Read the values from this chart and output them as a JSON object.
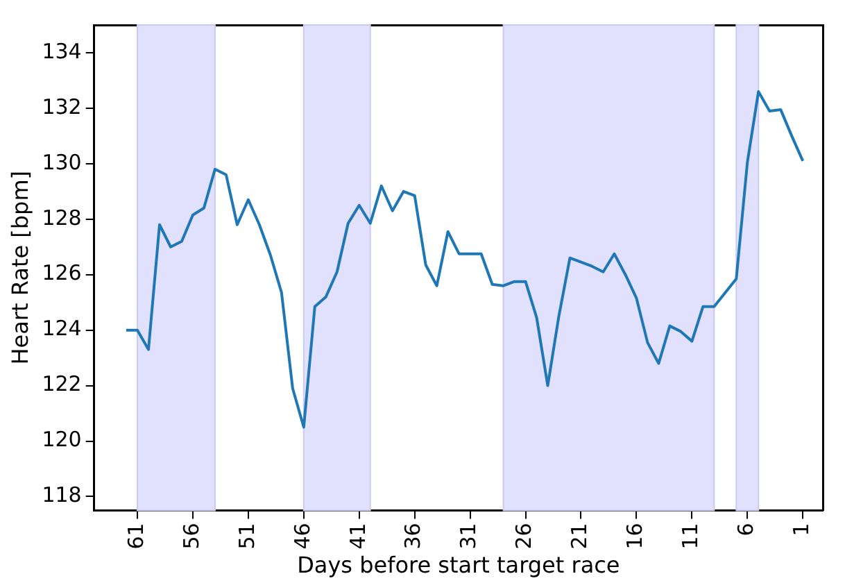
{
  "chart_data": {
    "type": "line",
    "xlabel": "Days before start target race",
    "ylabel": "Heart Rate [bpm]",
    "x": [
      62,
      61,
      60,
      59,
      58,
      57,
      56,
      55,
      54,
      53,
      52,
      51,
      50,
      49,
      48,
      47,
      46,
      45,
      44,
      43,
      42,
      41,
      40,
      39,
      38,
      37,
      36,
      35,
      34,
      33,
      32,
      31,
      30,
      29,
      28,
      27,
      26,
      25,
      24,
      23,
      22,
      21,
      20,
      19,
      18,
      17,
      16,
      15,
      14,
      13,
      12,
      11,
      10,
      9,
      8,
      7,
      6,
      5,
      4,
      3,
      2,
      1
    ],
    "series": [
      {
        "color": "#1f77b4",
        "values": [
          124.0,
          124.0,
          123.3,
          127.8,
          127.0,
          127.2,
          128.15,
          128.4,
          129.8,
          129.6,
          127.8,
          128.7,
          127.8,
          126.7,
          125.35,
          121.9,
          120.5,
          124.85,
          125.2,
          126.1,
          127.85,
          128.5,
          127.85,
          129.2,
          128.3,
          129.0,
          128.85,
          126.35,
          125.6,
          127.55,
          126.75,
          126.75,
          126.75,
          125.65,
          125.6,
          125.75,
          125.75,
          124.45,
          122.0,
          124.5,
          126.6,
          126.45,
          126.3,
          126.1,
          126.75,
          126.0,
          125.15,
          123.55,
          122.8,
          124.15,
          123.95,
          123.6,
          124.85,
          124.85,
          125.35,
          125.85,
          130.05,
          132.6,
          131.9,
          131.95,
          131.0,
          130.1
        ]
      }
    ],
    "xlim": [
      64.9,
      -0.8
    ],
    "xticks": [
      61,
      56,
      51,
      46,
      41,
      36,
      31,
      26,
      21,
      16,
      11,
      6,
      1
    ],
    "ylim": [
      117.5,
      135
    ],
    "yticks": [
      118,
      120,
      122,
      124,
      126,
      128,
      130,
      132,
      134
    ],
    "grid": false,
    "legend": false,
    "marker": "none",
    "line_style": "solid",
    "bands": [
      {
        "axis": "x",
        "from": 61,
        "to": 54,
        "color": "#e1e1fd"
      },
      {
        "axis": "x",
        "from": 46,
        "to": 40,
        "color": "#e1e1fd"
      },
      {
        "axis": "x",
        "from": 28,
        "to": 9,
        "color": "#e1e1fd"
      },
      {
        "axis": "x",
        "from": 7,
        "to": 5,
        "color": "#e1e1fd"
      }
    ]
  }
}
